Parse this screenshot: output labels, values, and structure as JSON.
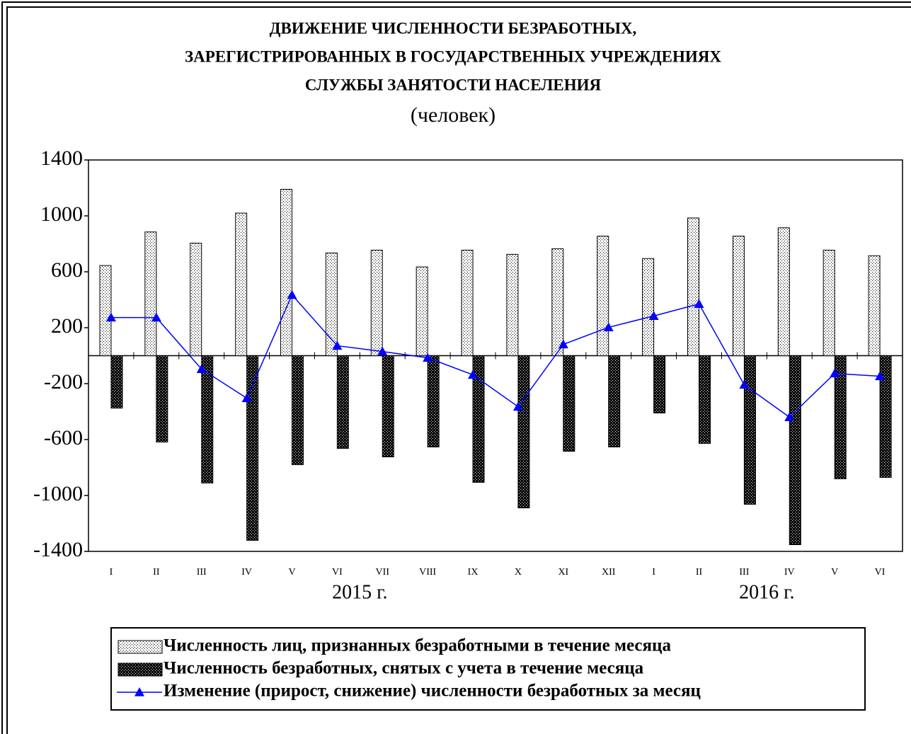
{
  "chart_data": {
    "type": "bar_line",
    "title": [
      "ДВИЖЕНИЕ ЧИСЛЕННОСТИ БЕЗРАБОТНЫХ,",
      "ЗАРЕГИСТРИРОВАННЫХ В ГОСУДАРСТВЕННЫХ УЧРЕЖДЕНИЯХ",
      "СЛУЖБЫ ЗАНЯТОСТИ НАСЕЛЕНИЯ"
    ],
    "subtitle": "(человек)",
    "categories": [
      "I",
      "II",
      "III",
      "IV",
      "V",
      "VI",
      "VII",
      "VIII",
      "IX",
      "X",
      "XI",
      "XII",
      "I",
      "II",
      "III",
      "IV",
      "V",
      "VI"
    ],
    "groups": [
      {
        "label": "2015 г.",
        "count": 12
      },
      {
        "label": "2016 г.",
        "count": 6
      }
    ],
    "series": [
      {
        "name": "Численность лиц, признанных безработными в течение месяца",
        "type": "bar",
        "color": "#000000",
        "pattern": "dots",
        "values": [
          645,
          885,
          805,
          1020,
          1190,
          735,
          755,
          635,
          755,
          725,
          765,
          855,
          695,
          985,
          855,
          915,
          755,
          715
        ]
      },
      {
        "name": "Численность безработных, снятых с учета в течение месяца",
        "type": "bar",
        "color": "#000000",
        "pattern": "checker",
        "values": [
          -375,
          -618,
          -911,
          -1321,
          -780,
          -663,
          -724,
          -653,
          -906,
          -1089,
          -684,
          -653,
          -410,
          -628,
          -1063,
          -1352,
          -881,
          -871
        ]
      },
      {
        "name": "Изменение (прирост, снижение) численности  безработных за месяц",
        "type": "line",
        "color": "#0000ff",
        "values": [
          273,
          273,
          -96,
          -304,
          435,
          71,
          30,
          -15,
          -137,
          -365,
          81,
          203,
          284,
          370,
          -208,
          -440,
          -127,
          -147
        ]
      }
    ],
    "ylim": [
      -1400,
      1400
    ],
    "yticks": [
      -1400,
      -1000,
      -600,
      -200,
      200,
      600,
      1000,
      1400
    ],
    "legend": "bottom"
  }
}
